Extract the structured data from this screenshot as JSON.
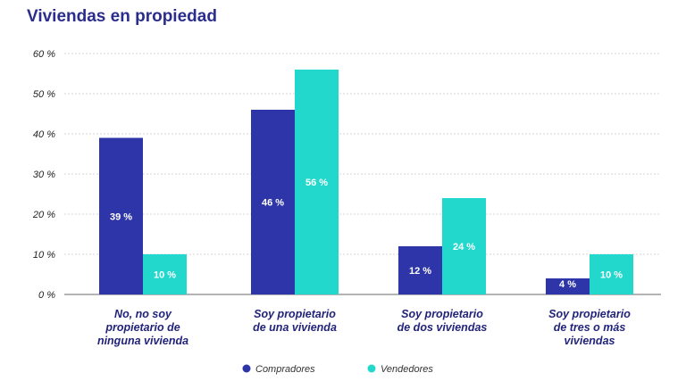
{
  "chart_data": {
    "type": "bar",
    "title": "Viviendas en propiedad",
    "categories": [
      [
        "No, no soy",
        "propietario de",
        "ninguna vivienda"
      ],
      [
        "Soy propietario",
        "de una vivienda"
      ],
      [
        "Soy propietario",
        "de dos viviendas"
      ],
      [
        "Soy propietario",
        "de tres o más",
        "viviendas"
      ]
    ],
    "series": [
      {
        "name": "Compradores",
        "color": "#2d35a8",
        "values": [
          39,
          46,
          12,
          4
        ],
        "labels": [
          "39 %",
          "46 %",
          "12 %",
          "4 %"
        ]
      },
      {
        "name": "Vendedores",
        "color": "#22d8cc",
        "values": [
          10,
          56,
          24,
          10
        ],
        "labels": [
          "10 %",
          "56 %",
          "24 %",
          "10 %"
        ]
      }
    ],
    "yticks": [
      "0 %",
      "10 %",
      "20 %",
      "30 %",
      "40 %",
      "50 %",
      "60 %"
    ],
    "ylim": [
      0,
      60
    ],
    "grid": true,
    "legend": "bottom-center"
  }
}
